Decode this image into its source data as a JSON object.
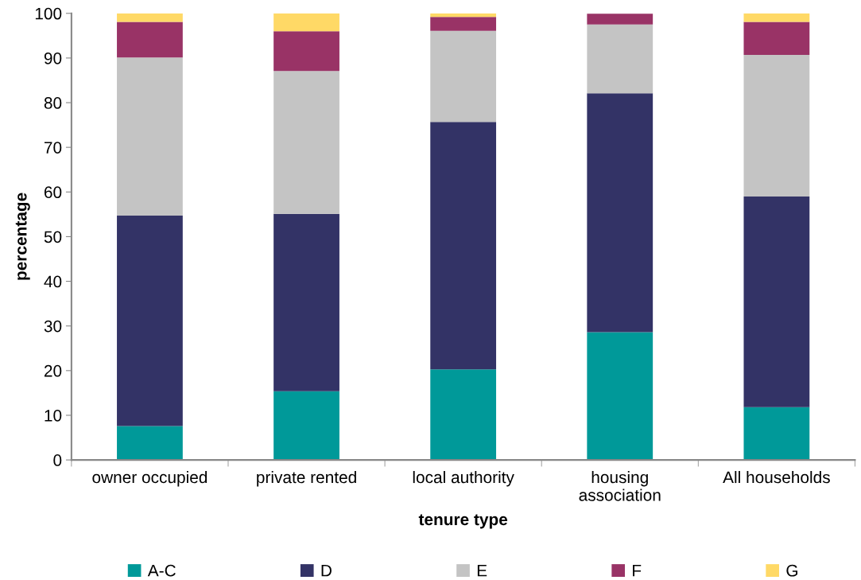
{
  "chart_data": {
    "type": "bar",
    "stacked": true,
    "xlabel": "tenure type",
    "ylabel": "percentage",
    "categories": [
      "owner occupied",
      "private rented",
      "local authority",
      "housing association",
      "All households"
    ],
    "series": [
      {
        "name": "A-C",
        "color": "#009999",
        "values": [
          7.6,
          15.4,
          20.3,
          28.6,
          11.8
        ]
      },
      {
        "name": "D",
        "color": "#333366",
        "values": [
          47.1,
          39.7,
          55.4,
          53.5,
          47.2
        ]
      },
      {
        "name": "E",
        "color": "#c4c4c4",
        "values": [
          35.4,
          32.0,
          20.4,
          15.4,
          31.7
        ]
      },
      {
        "name": "F",
        "color": "#993366",
        "values": [
          8.0,
          8.9,
          3.1,
          2.4,
          7.4
        ]
      },
      {
        "name": "G",
        "color": "#ffd966",
        "values": [
          1.9,
          4.0,
          0.8,
          null,
          1.9
        ]
      }
    ],
    "ylim": [
      0,
      100
    ],
    "yticks": [
      0,
      10,
      20,
      30,
      40,
      50,
      60,
      70,
      80,
      90,
      100
    ],
    "grid": false,
    "legend": "bottom"
  }
}
